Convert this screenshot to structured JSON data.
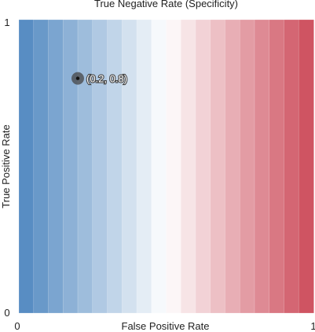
{
  "chart_data": {
    "type": "scatter",
    "title": "True Negative Rate (Specificity)",
    "xlabel": "False Positive Rate",
    "ylabel": "True Positive Rate",
    "xlim": [
      0,
      1
    ],
    "ylim": [
      0,
      1
    ],
    "x_ticks": [
      "0",
      "1"
    ],
    "y_ticks": [
      "0",
      "1"
    ],
    "background": {
      "kind": "diverging vertical bands",
      "bands": 20,
      "colors": {
        "low": "#4f87c0",
        "mid": "#ffffff",
        "high": "#cc4b5a"
      }
    },
    "points": [
      {
        "x": 0.2,
        "y": 0.8,
        "label": "(0.2, 0.8)"
      }
    ],
    "grid": false,
    "legend": "none"
  }
}
